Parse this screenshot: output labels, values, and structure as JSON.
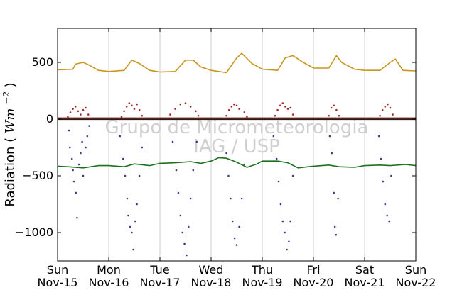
{
  "chart_data": {
    "type": "scatter",
    "title": "",
    "ylabel": {
      "main": "Radiation",
      "unit_base": "Wm",
      "unit_exp": "−2"
    },
    "ylim": [
      -1250,
      800
    ],
    "yticks": [
      {
        "value": 500,
        "label": "500"
      },
      {
        "value": 0,
        "label": "0"
      },
      {
        "value": -500,
        "label": "−500"
      },
      {
        "value": -1000,
        "label": "−1000"
      }
    ],
    "xlim": [
      0,
      7
    ],
    "xticks": [
      {
        "value": 0,
        "day": "Sun",
        "date": "Nov-15"
      },
      {
        "value": 1,
        "day": "Mon",
        "date": "Nov-16"
      },
      {
        "value": 2,
        "day": "Tue",
        "date": "Nov-17"
      },
      {
        "value": 3,
        "day": "Wed",
        "date": "Nov-18"
      },
      {
        "value": 4,
        "day": "Thu",
        "date": "Nov-19"
      },
      {
        "value": 5,
        "day": "Fri",
        "date": "Nov-20"
      },
      {
        "value": 6,
        "day": "Sat",
        "date": "Nov-21"
      },
      {
        "value": 7,
        "day": "Sun",
        "date": "Nov-22"
      }
    ],
    "x_grid": true,
    "watermark": {
      "line1": "Grupo de Micrometeorologia",
      "line2": "IAG / USP"
    },
    "series": [
      {
        "color": "#c8961e",
        "style": "line",
        "x": [
          0,
          0.3,
          0.35,
          0.5,
          0.6,
          0.8,
          1.0,
          1.3,
          1.45,
          1.6,
          1.8,
          2.0,
          2.3,
          2.5,
          2.65,
          2.8,
          3.0,
          3.3,
          3.5,
          3.6,
          3.8,
          4.0,
          4.3,
          4.45,
          4.6,
          4.8,
          5.0,
          5.3,
          5.45,
          5.55,
          5.8,
          6.0,
          6.3,
          6.5,
          6.6,
          6.75,
          7.0
        ],
        "y": [
          435,
          440,
          485,
          500,
          480,
          430,
          420,
          430,
          520,
          490,
          430,
          415,
          420,
          520,
          520,
          460,
          430,
          410,
          540,
          580,
          490,
          440,
          430,
          540,
          560,
          500,
          450,
          450,
          560,
          500,
          440,
          430,
          430,
          500,
          530,
          430,
          425
        ]
      },
      {
        "color": "#a03030",
        "style": "scatter",
        "x": [
          0.2,
          0.25,
          0.3,
          0.35,
          0.4,
          0.45,
          0.5,
          0.55,
          0.6,
          1.25,
          1.3,
          1.35,
          1.4,
          1.45,
          1.5,
          1.55,
          1.6,
          1.65,
          2.2,
          2.3,
          2.4,
          2.5,
          2.6,
          2.7,
          2.75,
          3.3,
          3.35,
          3.4,
          3.45,
          3.5,
          3.55,
          3.65,
          3.7,
          4.25,
          4.3,
          4.35,
          4.4,
          4.45,
          4.5,
          4.55,
          4.6,
          5.3,
          5.35,
          5.4,
          5.45,
          5.5,
          6.3,
          6.35,
          6.4,
          6.45,
          6.5,
          6.55
        ],
        "y": [
          20,
          60,
          90,
          110,
          70,
          40,
          80,
          100,
          40,
          20,
          70,
          110,
          140,
          120,
          90,
          130,
          80,
          30,
          40,
          90,
          130,
          140,
          110,
          70,
          30,
          30,
          80,
          110,
          130,
          120,
          90,
          60,
          20,
          30,
          80,
          120,
          140,
          110,
          90,
          100,
          40,
          30,
          100,
          120,
          80,
          30,
          30,
          80,
          110,
          130,
          100,
          40
        ]
      },
      {
        "color": "#202020",
        "style": "line",
        "x": [
          0,
          1,
          2,
          3,
          4,
          5,
          6,
          7
        ],
        "y": [
          0,
          0,
          0,
          0,
          0,
          0,
          0,
          0
        ]
      },
      {
        "color": "#7a1e1e",
        "style": "line",
        "x": [
          0,
          1,
          2,
          3,
          4,
          5,
          6,
          7
        ],
        "y": [
          8,
          8,
          8,
          8,
          8,
          8,
          8,
          8
        ]
      },
      {
        "color": "#3a3a8c",
        "style": "scatter",
        "x": [
          0.22,
          0.24,
          0.28,
          0.3,
          0.32,
          0.36,
          0.38,
          0.42,
          0.45,
          0.48,
          0.5,
          0.55,
          0.58,
          0.62,
          1.22,
          1.28,
          1.32,
          1.36,
          1.38,
          1.42,
          1.45,
          1.48,
          1.52,
          1.55,
          1.6,
          1.65,
          2.25,
          2.32,
          2.36,
          2.4,
          2.44,
          2.48,
          2.52,
          2.56,
          2.6,
          2.65,
          2.72,
          3.3,
          3.34,
          3.38,
          3.42,
          3.46,
          3.5,
          3.55,
          3.6,
          3.65,
          4.22,
          4.28,
          4.32,
          4.36,
          4.4,
          4.44,
          4.48,
          4.52,
          4.55,
          4.6,
          5.32,
          5.36,
          5.4,
          5.42,
          5.44,
          5.48,
          6.28,
          6.32,
          6.36,
          6.4,
          6.44,
          6.48,
          6.52
        ],
        "y": [
          -100,
          -250,
          -350,
          -450,
          -550,
          -650,
          -870,
          -400,
          -300,
          -200,
          -500,
          -250,
          -150,
          -60,
          -150,
          -350,
          -500,
          -700,
          -850,
          -950,
          -1000,
          -1150,
          -900,
          -750,
          -500,
          -250,
          -200,
          -450,
          -650,
          -850,
          -1000,
          -1100,
          -1200,
          -950,
          -700,
          -450,
          -200,
          -300,
          -500,
          -700,
          -900,
          -1050,
          -1110,
          -950,
          -700,
          -400,
          -150,
          -350,
          -550,
          -750,
          -900,
          -1000,
          -1150,
          -1080,
          -900,
          -500,
          -150,
          -300,
          -650,
          -950,
          -1020,
          -700,
          -150,
          -350,
          -550,
          -750,
          -850,
          -900,
          -500
        ]
      },
      {
        "color": "#1e701e",
        "style": "line",
        "x": [
          0,
          0.2,
          0.5,
          0.8,
          1.0,
          1.3,
          1.5,
          1.8,
          2.0,
          2.3,
          2.6,
          2.8,
          3.0,
          3.15,
          3.3,
          3.5,
          3.7,
          3.9,
          4.0,
          4.3,
          4.5,
          4.7,
          5.0,
          5.3,
          5.5,
          5.8,
          6.0,
          6.3,
          6.5,
          6.8,
          7.0
        ],
        "y": [
          -415,
          -420,
          -430,
          -410,
          -410,
          -420,
          -395,
          -410,
          -390,
          -385,
          -375,
          -390,
          -370,
          -340,
          -345,
          -380,
          -425,
          -395,
          -370,
          -370,
          -385,
          -430,
          -415,
          -405,
          -420,
          -425,
          -410,
          -405,
          -410,
          -400,
          -410
        ]
      }
    ]
  }
}
